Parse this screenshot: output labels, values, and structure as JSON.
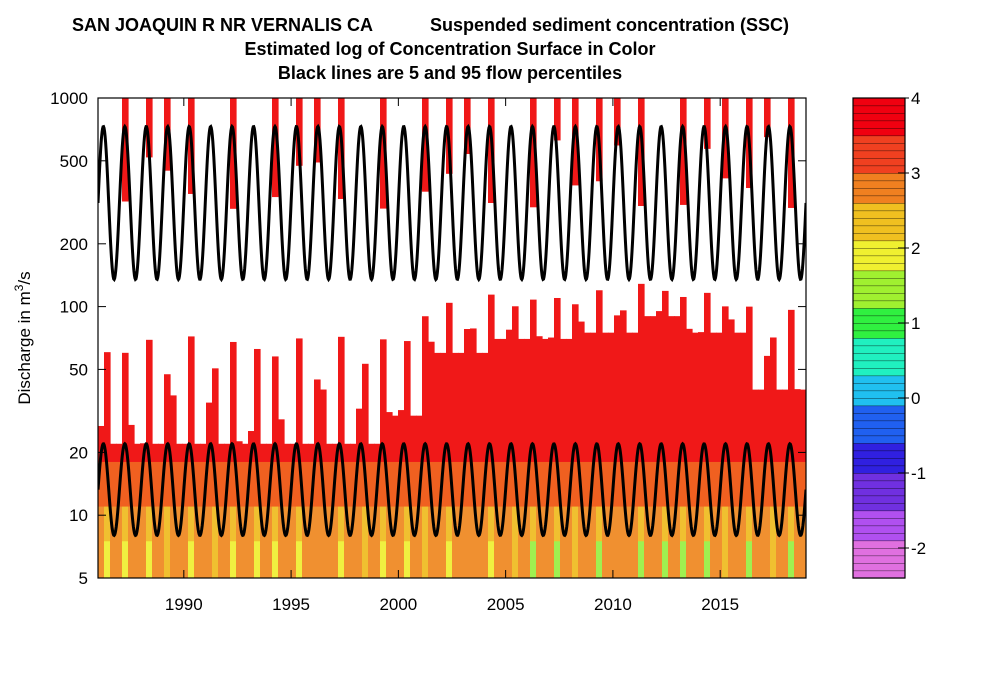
{
  "chart_data": {
    "type": "heatmap",
    "title_station": "SAN JOAQUIN R NR VERNALIS CA",
    "title_parameter": "Suspended sediment concentration (SSC)",
    "subtitle": "Estimated log of Concentration Surface in Color",
    "subtitle2": "Black lines are 5 and 95 flow percentiles",
    "xlabel": "",
    "ylabel": "Discharge in m",
    "ylabel_superscript": "3",
    "ylabel_suffix": "/s",
    "x_range": [
      1986,
      2019
    ],
    "y_range": [
      5,
      1000
    ],
    "y_scale": "log",
    "x_ticks": [
      "1990",
      "1995",
      "2000",
      "2005",
      "2010",
      "2015"
    ],
    "x_tick_values": [
      1990,
      1995,
      2000,
      2005,
      2010,
      2015
    ],
    "y_ticks": [
      "5",
      "10",
      "20",
      "50",
      "100",
      "200",
      "500",
      "1000"
    ],
    "y_tick_values": [
      5,
      10,
      20,
      50,
      100,
      200,
      500,
      1000
    ],
    "colorbar": {
      "range": [
        -2.4,
        4
      ],
      "ticks": [
        "4",
        "3",
        "2",
        "1",
        "0",
        "-1",
        "-2"
      ],
      "tick_values": [
        4,
        3,
        2,
        1,
        0,
        -1,
        -2
      ],
      "colors": [
        "#e070e0",
        "#b050f0",
        "#7030e0",
        "#3020e0",
        "#2060f0",
        "#20c0f0",
        "#20f0c0",
        "#30f040",
        "#a0f030",
        "#f0f030",
        "#f0c020",
        "#f08020",
        "#f04020",
        "#f00010"
      ]
    },
    "percentile_lines": {
      "p95_min": 135,
      "p95_max": 730,
      "p5_min": 8,
      "p5_max": 22,
      "period_years": 1,
      "phase": 0.25
    }
  }
}
